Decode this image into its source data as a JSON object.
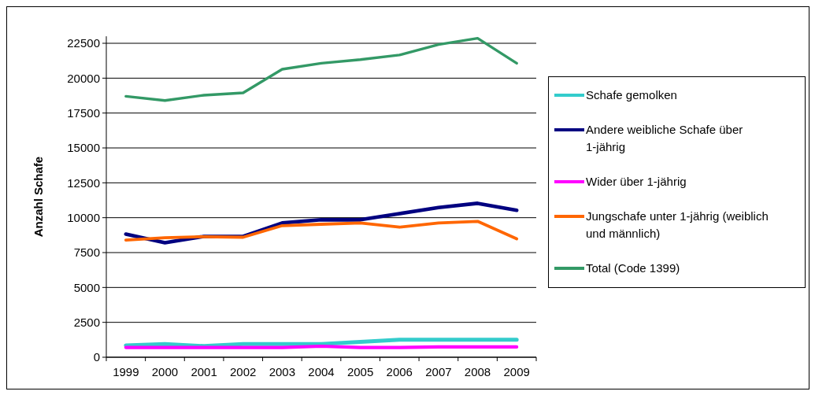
{
  "chart_data": {
    "type": "line",
    "ylabel": "Anzahl Schafe",
    "categories": [
      "1999",
      "2000",
      "2001",
      "2002",
      "2003",
      "2004",
      "2005",
      "2006",
      "2007",
      "2008",
      "2009"
    ],
    "ylim": [
      0,
      23000
    ],
    "yticks": [
      0,
      2500,
      5000,
      7500,
      10000,
      12500,
      15000,
      17500,
      20000,
      22500
    ],
    "grid": "y",
    "legend": "right",
    "marker": "none",
    "line_style": "solid",
    "series": [
      {
        "name": "Schafe gemolken",
        "color": "#33cccc",
        "values": [
          850,
          940,
          800,
          940,
          940,
          940,
          1100,
          1260,
          1260,
          1260,
          1260
        ]
      },
      {
        "name": "Andere weibliche Schafe über 1-jährig",
        "color": "#000080",
        "values": [
          8820,
          8210,
          8660,
          8660,
          9620,
          9850,
          9850,
          10290,
          10730,
          11030,
          10530
        ]
      },
      {
        "name": "Wider über 1-jährig",
        "color": "#ff00ff",
        "values": [
          700,
          700,
          700,
          700,
          700,
          790,
          700,
          700,
          740,
          740,
          740
        ]
      },
      {
        "name": "Jungschafe unter 1-jährig (weiblich und männlich)",
        "color": "#ff6600",
        "values": [
          8400,
          8560,
          8640,
          8600,
          9430,
          9530,
          9620,
          9320,
          9620,
          9740,
          8490
        ]
      },
      {
        "name": "Total (Code 1399)",
        "color": "#339966",
        "values": [
          18700,
          18400,
          18780,
          18950,
          20640,
          21070,
          21330,
          21660,
          22410,
          22860,
          21070
        ]
      }
    ]
  }
}
